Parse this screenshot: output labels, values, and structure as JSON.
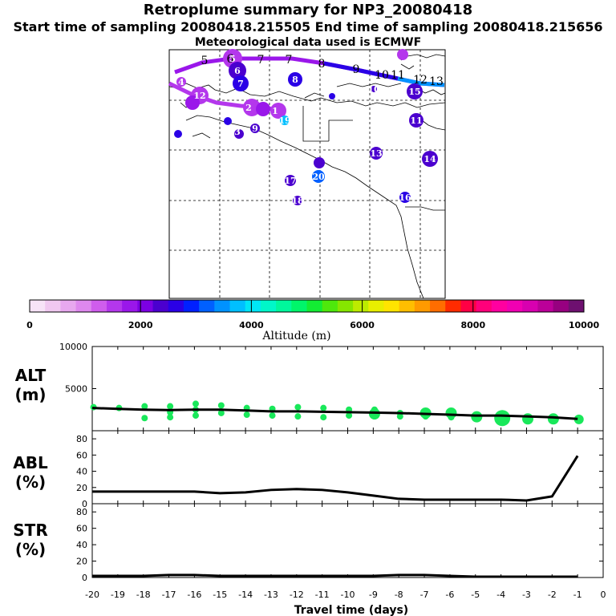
{
  "header": {
    "title": "Retroplume summary for NP3_20080418",
    "sampling": "Start time of sampling 20080418.215505     End time of sampling 20080418.215656",
    "met": "Meteorological data used is ECMWF"
  },
  "colorbar": {
    "title": "Altitude (m)",
    "tick_labels": [
      "0",
      "2000",
      "4000",
      "6000",
      "8000",
      "10000"
    ],
    "colors": [
      "#f7e3f7",
      "#f0c8f0",
      "#e8a8ef",
      "#de88ee",
      "#cf5ded",
      "#b437ec",
      "#9a17ea",
      "#7c00e3",
      "#4b00cf",
      "#2a00e6",
      "#0020ff",
      "#0060ff",
      "#0092ff",
      "#00bfff",
      "#00e6f6",
      "#00f7c9",
      "#00f79c",
      "#00f56a",
      "#13ec33",
      "#4ee80c",
      "#86e600",
      "#bdeb00",
      "#e8ee00",
      "#ffe400",
      "#ffbe00",
      "#ff9a00",
      "#ff6d00",
      "#ff2b00",
      "#ff0044",
      "#ff007a",
      "#ff00a0",
      "#f000b3",
      "#d800b0",
      "#bb0099",
      "#970080",
      "#6e1070"
    ]
  },
  "map": {
    "trajectory_labels": [
      "5",
      "6",
      "7",
      "8",
      "9",
      "10",
      "11",
      "12",
      "13"
    ],
    "cluster_labels": [
      "1",
      "2",
      "3",
      "4",
      "5",
      "6",
      "7",
      "8",
      "9",
      "10",
      "11",
      "12",
      "13",
      "14",
      "15",
      "16",
      "17",
      "18",
      "19",
      "20"
    ]
  },
  "chart_data": [
    {
      "type": "line",
      "panel": "ALT",
      "title": "ALT",
      "ylabel": "(m)",
      "xlabel": "Travel time (days)",
      "x": [
        -20,
        -19,
        -18,
        -17,
        -16,
        -15,
        -14,
        -13,
        -12,
        -11,
        -10,
        -9,
        -8,
        -7,
        -6,
        -5,
        -4,
        -3,
        -2,
        -1
      ],
      "values": [
        2700,
        2600,
        2500,
        2450,
        2500,
        2500,
        2400,
        2300,
        2300,
        2250,
        2200,
        2150,
        2100,
        2000,
        1900,
        1800,
        1800,
        1700,
        1600,
        1400
      ],
      "ylim": [
        0,
        10000
      ],
      "y_tick_labels": [
        "10000",
        "5000"
      ],
      "x_tick_labels": [
        "-20",
        "-19",
        "-18",
        "-17",
        "-16",
        "-15",
        "-14",
        "-13",
        "-12",
        "-11",
        "-10",
        "-9",
        "-8",
        "-7",
        "-6",
        "-5",
        "-4",
        "-3",
        "-2",
        "-1",
        "0"
      ],
      "cluster_altitudes": [
        [
          -20,
          2800
        ],
        [
          -19,
          2700
        ],
        [
          -18,
          2900
        ],
        [
          -18,
          1500
        ],
        [
          -17,
          2900
        ],
        [
          -17,
          2200
        ],
        [
          -17,
          1600
        ],
        [
          -16,
          3200
        ],
        [
          -16,
          2500
        ],
        [
          -16,
          1800
        ],
        [
          -15,
          3000
        ],
        [
          -15,
          2100
        ],
        [
          -14,
          2700
        ],
        [
          -14,
          1900
        ],
        [
          -13,
          2600
        ],
        [
          -13,
          1800
        ],
        [
          -12,
          2800
        ],
        [
          -12,
          1700
        ],
        [
          -11,
          2700
        ],
        [
          -11,
          1600
        ],
        [
          -10,
          2500
        ],
        [
          -10,
          1800
        ],
        [
          -9,
          2500
        ],
        [
          -9,
          1700
        ],
        [
          -8,
          2100
        ],
        [
          -8,
          1700
        ],
        [
          -7,
          2200
        ],
        [
          -7,
          1700
        ],
        [
          -6,
          2200
        ],
        [
          -6,
          1600
        ],
        [
          -5,
          1700
        ],
        [
          -4,
          1500
        ],
        [
          -3,
          1400
        ],
        [
          -2,
          1400
        ],
        [
          -1,
          1350
        ]
      ]
    },
    {
      "type": "line",
      "panel": "ABL",
      "title": "ABL",
      "ylabel": "(%)",
      "x": [
        -20,
        -19,
        -18,
        -17,
        -16,
        -15,
        -14,
        -13,
        -12,
        -11,
        -10,
        -9,
        -8,
        -7,
        -6,
        -5,
        -4,
        -3,
        -2,
        -1
      ],
      "values": [
        15,
        15,
        15,
        15,
        15,
        13,
        14,
        17,
        18,
        17,
        14,
        10,
        6,
        5,
        5,
        5,
        5,
        4,
        9,
        59
      ],
      "ylim": [
        0,
        90
      ],
      "y_tick_labels": [
        "80",
        "60",
        "40",
        "20",
        "0"
      ]
    },
    {
      "type": "line",
      "panel": "STR",
      "title": "STR",
      "ylabel": "(%)",
      "x": [
        -20,
        -19,
        -18,
        -17,
        -16,
        -15,
        -14,
        -13,
        -12,
        -11,
        -10,
        -9,
        -8,
        -7,
        -6,
        -5,
        -4,
        -3,
        -2,
        -1
      ],
      "values": [
        2,
        2,
        2,
        3,
        3,
        2,
        2,
        2,
        2,
        2,
        2,
        2,
        3,
        3,
        2,
        1,
        1,
        1,
        1,
        1
      ],
      "ylim": [
        0,
        90
      ],
      "y_tick_labels": [
        "80",
        "60",
        "40",
        "20",
        "0"
      ]
    }
  ]
}
